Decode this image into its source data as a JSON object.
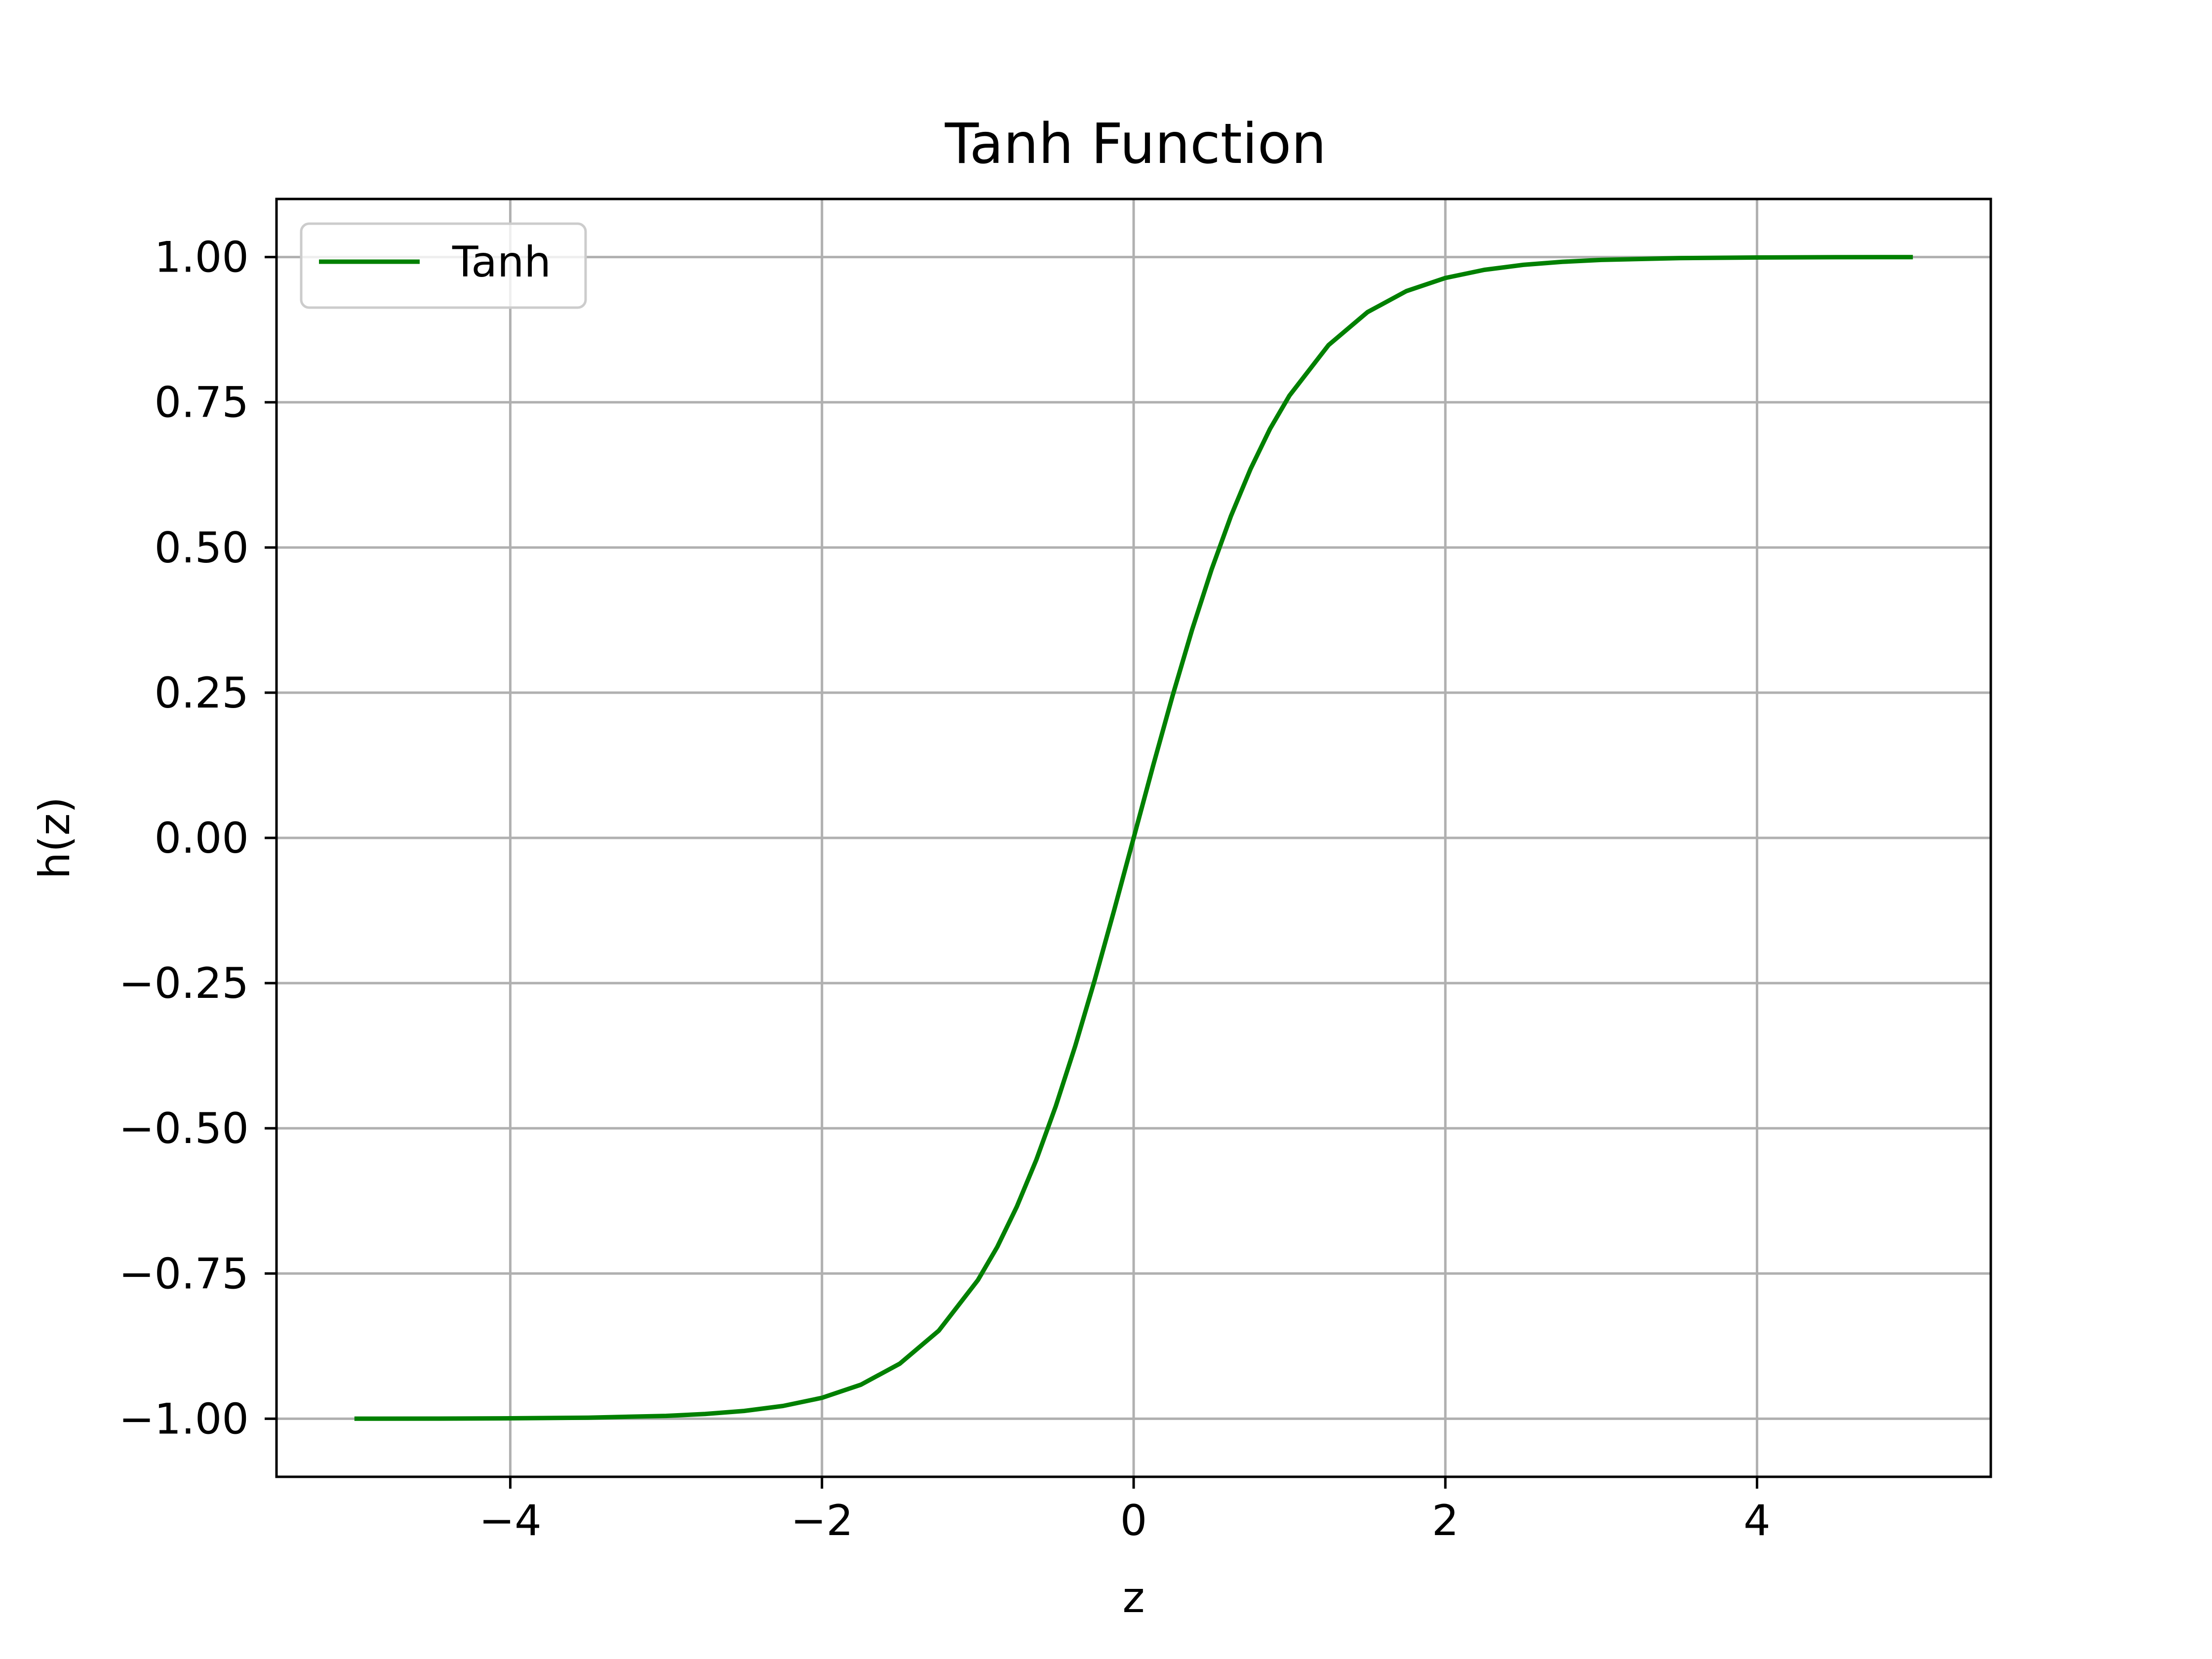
{
  "chart_data": {
    "type": "line",
    "title": "Tanh Function",
    "xlabel": "z",
    "ylabel": "h(z)",
    "xlim": [
      -5.5,
      5.5
    ],
    "ylim": [
      -1.1,
      1.1
    ],
    "x_ticks": [
      -4,
      -2,
      0,
      2,
      4
    ],
    "x_tick_labels": [
      "−4",
      "−2",
      "0",
      "2",
      "4"
    ],
    "y_ticks": [
      1.0,
      0.75,
      0.5,
      0.25,
      0.0,
      -0.25,
      -0.5,
      -0.75,
      -1.0
    ],
    "y_tick_labels": [
      "1.00",
      "0.75",
      "0.50",
      "0.25",
      "0.00",
      "−0.25",
      "−0.50",
      "−0.75",
      "−1.00"
    ],
    "grid": true,
    "legend_position": "top-left",
    "series": [
      {
        "name": "Tanh",
        "color": "#008000",
        "x": [
          -5.0,
          -4.5,
          -4.0,
          -3.5,
          -3.0,
          -2.75,
          -2.5,
          -2.25,
          -2.0,
          -1.75,
          -1.5,
          -1.25,
          -1.0,
          -0.875,
          -0.75,
          -0.625,
          -0.5,
          -0.375,
          -0.25,
          -0.125,
          0.0,
          0.125,
          0.25,
          0.375,
          0.5,
          0.625,
          0.75,
          0.875,
          1.0,
          1.25,
          1.5,
          1.75,
          2.0,
          2.25,
          2.5,
          2.75,
          3.0,
          3.5,
          4.0,
          4.5,
          5.0
        ],
        "y": [
          -0.9999,
          -0.9998,
          -0.9993,
          -0.9982,
          -0.9951,
          -0.9918,
          -0.9866,
          -0.978,
          -0.964,
          -0.9414,
          -0.9051,
          -0.8483,
          -0.7616,
          -0.7042,
          -0.6351,
          -0.5546,
          -0.4621,
          -0.3584,
          -0.2449,
          -0.1244,
          0.0,
          0.1244,
          0.2449,
          0.3584,
          0.4621,
          0.5546,
          0.6351,
          0.7042,
          0.7616,
          0.8483,
          0.9051,
          0.9414,
          0.964,
          0.978,
          0.9866,
          0.9918,
          0.9951,
          0.9982,
          0.9993,
          0.9998,
          0.9999
        ]
      }
    ]
  }
}
